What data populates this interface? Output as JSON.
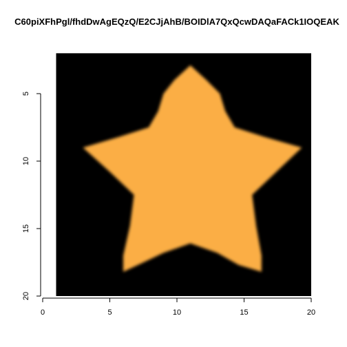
{
  "chart_data": {
    "type": "heatmap",
    "title": "C60piXFhPgl/fhdDwAgEQzQ/E2CJjAhB/BOIDlA7QxQcwDAQaFACk1IOQEAK",
    "xlabel": "",
    "ylabel": "",
    "xlim": [
      0,
      20
    ],
    "ylim": [
      20,
      0
    ],
    "y_reversed": true,
    "x_ticks": [
      "0",
      "5",
      "10",
      "15",
      "20"
    ],
    "y_ticks": [
      "5",
      "10",
      "15",
      "20"
    ],
    "raster": {
      "x_range": [
        1,
        20
      ],
      "y_range": [
        2,
        20
      ],
      "background_color": "#000000",
      "fill_color": "#FBAE45"
    },
    "shape": "star",
    "star_outline": [
      [
        11,
        2.9
      ],
      [
        12.2,
        4
      ],
      [
        13.2,
        5
      ],
      [
        13.6,
        6.3
      ],
      [
        14.3,
        7.5
      ],
      [
        16.5,
        8.2
      ],
      [
        19.3,
        9
      ],
      [
        17.4,
        10.8
      ],
      [
        15.6,
        12.5
      ],
      [
        15.9,
        14.8
      ],
      [
        16.3,
        17
      ],
      [
        16.3,
        18.2
      ],
      [
        14.6,
        17.7
      ],
      [
        13,
        16.8
      ],
      [
        11,
        16.1
      ],
      [
        9,
        16.8
      ],
      [
        7.3,
        17.6
      ],
      [
        6,
        18.2
      ],
      [
        6,
        17
      ],
      [
        6.5,
        14.8
      ],
      [
        6.8,
        12.5
      ],
      [
        5,
        10.8
      ],
      [
        3,
        9
      ],
      [
        5.7,
        8.2
      ],
      [
        7.9,
        7.5
      ],
      [
        8.6,
        6.3
      ],
      [
        9,
        5
      ],
      [
        9.8,
        4
      ]
    ]
  }
}
